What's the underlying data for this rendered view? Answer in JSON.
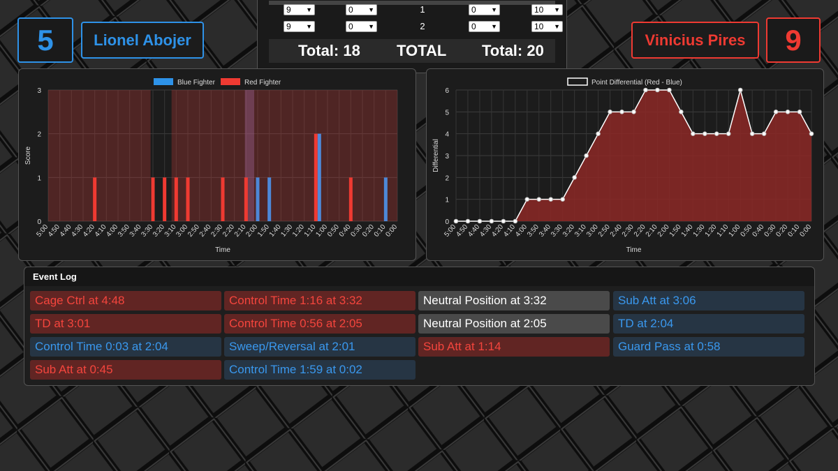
{
  "blue_fighter": {
    "name": "Lionel Abojer",
    "score": "5",
    "color": "#2e92e8"
  },
  "red_fighter": {
    "name": "Vinicius Pires",
    "score": "9",
    "color": "#ef3a32"
  },
  "scorecard": {
    "rounds": [
      {
        "round": "1",
        "blue_a": "9",
        "blue_b": "0",
        "red_a": "0",
        "red_b": "10"
      },
      {
        "round": "2",
        "blue_a": "9",
        "blue_b": "0",
        "red_a": "0",
        "red_b": "10"
      }
    ],
    "blue_total": "Total: 18",
    "center_label": "TOTAL",
    "red_total": "Total: 20"
  },
  "chart_data": [
    {
      "type": "bar",
      "legend": [
        "Blue Fighter",
        "Red Fighter"
      ],
      "xlabel": "Time",
      "ylabel": "Score",
      "ylim": [
        0,
        3
      ],
      "yticks": [
        "0",
        "1",
        "2",
        "3"
      ],
      "categories": [
        "5:00",
        "4:50",
        "4:40",
        "4:30",
        "4:20",
        "4:10",
        "4:00",
        "3:50",
        "3:40",
        "3:30",
        "3:20",
        "3:10",
        "3:00",
        "2:50",
        "2:40",
        "2:30",
        "2:20",
        "2:10",
        "2:00",
        "1:50",
        "1:40",
        "1:30",
        "1:20",
        "1:10",
        "1:00",
        "0:50",
        "0:40",
        "0:30",
        "0:20",
        "0:10",
        "0:00"
      ],
      "control_bands": [
        {
          "fighter": "red",
          "from": "5:00",
          "to": "3:32"
        },
        {
          "fighter": "red",
          "from": "3:14",
          "to": "0:00"
        },
        {
          "fighter": "blue",
          "from": "2:11",
          "to": "2:03"
        }
      ],
      "series": [
        {
          "name": "Red Fighter",
          "color": "#ef3a32",
          "points": [
            {
              "t": "4:20",
              "v": 1
            },
            {
              "t": "3:30",
              "v": 1
            },
            {
              "t": "3:20",
              "v": 1
            },
            {
              "t": "3:10",
              "v": 1
            },
            {
              "t": "3:00",
              "v": 1
            },
            {
              "t": "2:30",
              "v": 1
            },
            {
              "t": "2:10",
              "v": 1
            },
            {
              "t": "1:10",
              "v": 2
            },
            {
              "t": "0:40",
              "v": 1
            }
          ]
        },
        {
          "name": "Blue Fighter",
          "color": "#4d88d8",
          "points": [
            {
              "t": "2:00",
              "v": 1
            },
            {
              "t": "1:50",
              "v": 1
            },
            {
              "t": "1:07",
              "v": 2
            },
            {
              "t": "0:10",
              "v": 1
            }
          ]
        }
      ]
    },
    {
      "type": "area",
      "legend": [
        "Point Differential (Red - Blue)"
      ],
      "xlabel": "Time",
      "ylabel": "Differential",
      "ylim": [
        0,
        6
      ],
      "yticks": [
        "0",
        "1",
        "2",
        "3",
        "4",
        "5",
        "6"
      ],
      "categories": [
        "5:00",
        "4:50",
        "4:40",
        "4:30",
        "4:20",
        "4:10",
        "4:00",
        "3:50",
        "3:40",
        "3:30",
        "3:20",
        "3:10",
        "3:00",
        "2:50",
        "2:40",
        "2:30",
        "2:20",
        "2:10",
        "2:00",
        "1:50",
        "1:40",
        "1:30",
        "1:20",
        "1:10",
        "1:00",
        "0:50",
        "0:40",
        "0:30",
        "0:20",
        "0:10",
        "0:00"
      ],
      "values": [
        0,
        0,
        0,
        0,
        0,
        0,
        1,
        1,
        1,
        1,
        2,
        3,
        4,
        5,
        5,
        5,
        6,
        6,
        6,
        5,
        4,
        4,
        4,
        4,
        6,
        4,
        4,
        5,
        5,
        5,
        4
      ]
    }
  ],
  "event_log": {
    "title": "Event Log",
    "events": [
      {
        "text": "Cage Ctrl at 4:48",
        "side": "red"
      },
      {
        "text": "Control Time 1:16 at 3:32",
        "side": "red"
      },
      {
        "text": "Neutral Position at 3:32",
        "side": "neutral"
      },
      {
        "text": "Sub Att at 3:06",
        "side": "blue"
      },
      {
        "text": "TD at 3:01",
        "side": "red"
      },
      {
        "text": "Control Time 0:56 at 2:05",
        "side": "red"
      },
      {
        "text": "Neutral Position at 2:05",
        "side": "neutral"
      },
      {
        "text": "TD at 2:04",
        "side": "blue"
      },
      {
        "text": "Control Time 0:03 at 2:04",
        "side": "blue"
      },
      {
        "text": "Sweep/Reversal at 2:01",
        "side": "blue"
      },
      {
        "text": "Sub Att at 1:14",
        "side": "red"
      },
      {
        "text": "Guard Pass at 0:58",
        "side": "blue"
      },
      {
        "text": "Sub Att at 0:45",
        "side": "red"
      },
      {
        "text": "Control Time 1:59 at 0:02",
        "side": "blue"
      }
    ]
  }
}
